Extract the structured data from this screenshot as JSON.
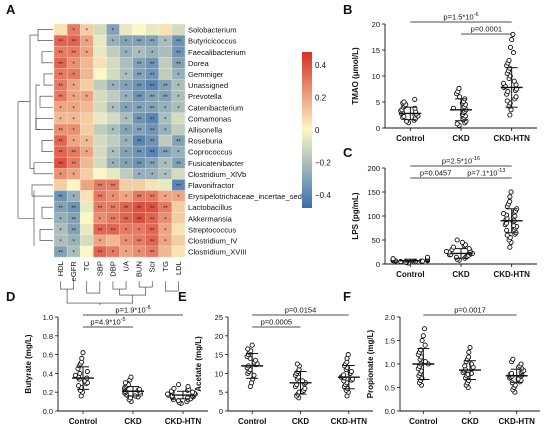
{
  "heatmap": {
    "panel_label": "A",
    "rows": [
      "Solobacterium",
      "Butyricicoccus",
      "Faecalibacterium",
      "Dorea",
      "Gemmiger",
      "Unassigned",
      "Prevotella",
      "Catenibacterium",
      "Comamonas",
      "Allisonella",
      "Roseburia",
      "Coprococcus",
      "Fusicatenibacter",
      "Clostridium_XlVb",
      "Flavonifractor",
      "Erysipelotrichaceae_incertae_sedis",
      "Lactobacillus",
      "Akkermansia",
      "Streptococcus",
      "Clostridium_IV",
      "Clostridium_XVIII"
    ],
    "columns": [
      "HDL",
      "eGFR",
      "TC",
      "SBP",
      "DBP",
      "UA",
      "BUN",
      "Scr",
      "TG",
      "LDL"
    ],
    "values": [
      [
        0.05,
        0.3,
        0.1,
        -0.1,
        -0.3,
        -0.05,
        0.0,
        -0.05,
        0.05,
        -0.1
      ],
      [
        0.35,
        0.35,
        0.2,
        -0.05,
        -0.25,
        -0.3,
        -0.3,
        -0.3,
        -0.2,
        -0.35
      ],
      [
        0.3,
        0.3,
        0.2,
        -0.05,
        -0.15,
        -0.25,
        -0.2,
        -0.25,
        -0.2,
        -0.35
      ],
      [
        0.35,
        0.25,
        0.15,
        0.05,
        -0.1,
        -0.2,
        -0.3,
        -0.35,
        -0.15,
        -0.3
      ],
      [
        0.3,
        0.3,
        0.15,
        0.0,
        -0.1,
        -0.2,
        -0.3,
        -0.35,
        -0.15,
        -0.25
      ],
      [
        0.3,
        0.2,
        0.1,
        -0.15,
        -0.25,
        -0.3,
        -0.35,
        -0.4,
        -0.3,
        -0.2
      ],
      [
        0.3,
        0.2,
        0.2,
        -0.1,
        -0.15,
        -0.25,
        -0.35,
        -0.3,
        -0.3,
        -0.2
      ],
      [
        0.2,
        0.2,
        0.15,
        -0.1,
        -0.2,
        -0.3,
        -0.3,
        -0.3,
        -0.25,
        -0.2
      ],
      [
        0.15,
        0.15,
        0.1,
        -0.05,
        -0.1,
        -0.2,
        -0.35,
        -0.4,
        -0.2,
        -0.1
      ],
      [
        0.25,
        0.25,
        0.1,
        -0.15,
        -0.2,
        -0.3,
        -0.3,
        -0.35,
        -0.25,
        -0.15
      ],
      [
        0.35,
        0.2,
        0.15,
        -0.1,
        -0.15,
        -0.25,
        -0.4,
        -0.35,
        -0.15,
        -0.3
      ],
      [
        0.35,
        0.3,
        0.2,
        -0.1,
        -0.2,
        -0.3,
        -0.35,
        -0.4,
        -0.3,
        -0.25
      ],
      [
        0.4,
        0.3,
        0.15,
        -0.1,
        -0.25,
        -0.3,
        -0.35,
        -0.3,
        -0.2,
        -0.3
      ],
      [
        0.25,
        0.2,
        0.1,
        0.0,
        -0.05,
        -0.15,
        -0.25,
        -0.25,
        -0.2,
        -0.1
      ],
      [
        0.1,
        0.0,
        0.2,
        0.3,
        0.3,
        0.1,
        0.1,
        0.05,
        -0.05,
        -0.4
      ],
      [
        -0.35,
        -0.25,
        0.05,
        0.3,
        0.25,
        0.2,
        0.3,
        0.3,
        0.2,
        0.2
      ],
      [
        -0.3,
        -0.35,
        -0.05,
        0.3,
        0.3,
        0.35,
        0.4,
        0.4,
        0.3,
        0.1
      ],
      [
        -0.25,
        -0.3,
        0.0,
        0.25,
        0.3,
        0.35,
        0.4,
        0.35,
        0.25,
        0.1
      ],
      [
        -0.2,
        -0.3,
        -0.05,
        0.35,
        0.35,
        0.3,
        0.3,
        0.35,
        0.2,
        0.05
      ],
      [
        -0.2,
        -0.25,
        -0.1,
        0.2,
        0.15,
        0.25,
        0.3,
        0.35,
        0.2,
        0.1
      ],
      [
        -0.3,
        -0.2,
        0.0,
        0.35,
        0.3,
        0.2,
        0.25,
        0.3,
        0.15,
        0.05
      ]
    ],
    "significance": [
      [
        0,
        1,
        1,
        0,
        1,
        0,
        0,
        0,
        0,
        0
      ],
      [
        2,
        2,
        1,
        0,
        1,
        1,
        2,
        2,
        1,
        2
      ],
      [
        2,
        2,
        1,
        0,
        0,
        1,
        1,
        1,
        0,
        2
      ],
      [
        2,
        1,
        0,
        0,
        0,
        0,
        2,
        2,
        0,
        2
      ],
      [
        2,
        1,
        0,
        0,
        0,
        1,
        2,
        2,
        0,
        1
      ],
      [
        2,
        1,
        0,
        0,
        1,
        1,
        2,
        2,
        2,
        1
      ],
      [
        2,
        1,
        1,
        0,
        0,
        1,
        2,
        2,
        2,
        1
      ],
      [
        1,
        1,
        0,
        0,
        1,
        1,
        2,
        2,
        1,
        1
      ],
      [
        1,
        1,
        0,
        0,
        0,
        1,
        2,
        2,
        1,
        0
      ],
      [
        2,
        1,
        0,
        0,
        1,
        1,
        2,
        2,
        1,
        0
      ],
      [
        2,
        1,
        1,
        0,
        0,
        1,
        2,
        2,
        0,
        2
      ],
      [
        2,
        2,
        1,
        0,
        1,
        1,
        2,
        2,
        2,
        1
      ],
      [
        2,
        2,
        0,
        0,
        1,
        1,
        2,
        2,
        1,
        2
      ],
      [
        1,
        1,
        0,
        0,
        0,
        0,
        1,
        1,
        1,
        0
      ],
      [
        0,
        0,
        0,
        2,
        2,
        0,
        0,
        0,
        0,
        2
      ],
      [
        2,
        1,
        0,
        2,
        1,
        1,
        2,
        2,
        1,
        1
      ],
      [
        2,
        2,
        0,
        2,
        2,
        2,
        2,
        2,
        2,
        0
      ],
      [
        1,
        2,
        0,
        1,
        2,
        2,
        2,
        2,
        1,
        0
      ],
      [
        1,
        2,
        0,
        2,
        2,
        1,
        1,
        2,
        1,
        0
      ],
      [
        1,
        1,
        0,
        1,
        0,
        1,
        2,
        2,
        1,
        0
      ],
      [
        2,
        1,
        0,
        2,
        1,
        1,
        1,
        2,
        0,
        0
      ]
    ],
    "colorbar": {
      "ticks": [
        0.4,
        0.2,
        0,
        -0.2,
        -0.4
      ],
      "tick_labels": [
        "0.4",
        "0.2",
        "0",
        "−0.2",
        "−0.4"
      ],
      "range": [
        -0.48,
        0.48
      ]
    },
    "colors": {
      "positive": "#d73027",
      "mid": "#fcf7c4",
      "negative": "#3b6fae"
    }
  },
  "chart_data": [
    {
      "panel": "B",
      "type": "scatter",
      "categories": [
        "Control",
        "CKD",
        "CKD-HTN"
      ],
      "ylabel": "TMAO (μmol/L)",
      "ylim": [
        0,
        20
      ],
      "yticks": [
        0,
        5,
        10,
        15,
        20
      ],
      "groups": [
        {
          "points": [
            1.0,
            1.3,
            1.5,
            1.8,
            2.0,
            2.2,
            2.3,
            2.5,
            2.7,
            2.8,
            3.0,
            3.1,
            3.3,
            3.5,
            3.8,
            4.0,
            4.2,
            4.5,
            4.8,
            5.0,
            5.5
          ],
          "mean": 2.8,
          "sd": 1.2
        },
        {
          "points": [
            0.5,
            0.8,
            1.0,
            1.3,
            1.6,
            2.0,
            2.3,
            2.6,
            3.0,
            3.2,
            3.5,
            3.8,
            4.1,
            4.5,
            4.8,
            5.1,
            5.6,
            6.0,
            6.6,
            7.0,
            7.6
          ],
          "mean": 3.5,
          "sd": 2.1
        },
        {
          "points": [
            2.5,
            3.5,
            4.2,
            4.8,
            5.2,
            5.6,
            6.0,
            6.5,
            7.0,
            7.2,
            7.5,
            7.8,
            8.0,
            8.3,
            8.6,
            9.0,
            9.5,
            10.0,
            10.5,
            11.0,
            11.5,
            12.0,
            12.5,
            13.0,
            14.5,
            15.5,
            17.0,
            18.0
          ],
          "mean": 7.8,
          "sd": 3.8
        }
      ],
      "annotations": [
        {
          "text": "p=1.5*10",
          "sup": "-6",
          "from": 0,
          "to": 2,
          "level": 0
        },
        {
          "text": "p=0.0001",
          "sup": "",
          "from": 1,
          "to": 2,
          "level": 1
        }
      ]
    },
    {
      "panel": "C",
      "type": "scatter",
      "categories": [
        "Control",
        "CKD",
        "CKD-HTN"
      ],
      "ylabel": "LPS (pg/mL)",
      "ylim": [
        0,
        200
      ],
      "yticks": [
        0,
        50,
        100,
        150,
        200
      ],
      "groups": [
        {
          "points": [
            2,
            3,
            4,
            4,
            5,
            5,
            6,
            6,
            6,
            7,
            7,
            7,
            8,
            8,
            8,
            9,
            9,
            10,
            10,
            11,
            12,
            14
          ],
          "mean": 7,
          "sd": 3
        },
        {
          "points": [
            8,
            10,
            12,
            14,
            15,
            16,
            18,
            19,
            20,
            21,
            22,
            23,
            24,
            25,
            26,
            28,
            30,
            32,
            35,
            38,
            40,
            45,
            50
          ],
          "mean": 22,
          "sd": 10
        },
        {
          "points": [
            35,
            45,
            50,
            55,
            60,
            62,
            65,
            70,
            72,
            75,
            78,
            80,
            82,
            85,
            88,
            90,
            92,
            95,
            98,
            100,
            102,
            105,
            108,
            110,
            115,
            120,
            125,
            130,
            140,
            150
          ],
          "mean": 90,
          "sd": 25
        }
      ],
      "annotations": [
        {
          "text": "p=2.5*10",
          "sup": "-16",
          "from": 0,
          "to": 2,
          "level": 0
        },
        {
          "text": "p=0.0457",
          "sup": "",
          "from": 0,
          "to": 1,
          "level": 1
        },
        {
          "text": "p=7.1*10",
          "sup": "-13",
          "from": 1,
          "to": 2,
          "level": 1
        }
      ]
    },
    {
      "panel": "D",
      "type": "scatter",
      "categories": [
        "Control",
        "CKD",
        "CKD-HTN"
      ],
      "ylabel": "Butyrate (mg/L)",
      "ylim": [
        0,
        1.0
      ],
      "yticks": [
        0.0,
        0.2,
        0.4,
        0.6,
        0.8,
        1.0
      ],
      "groups": [
        {
          "points": [
            0.16,
            0.2,
            0.22,
            0.25,
            0.27,
            0.29,
            0.3,
            0.32,
            0.34,
            0.35,
            0.36,
            0.38,
            0.4,
            0.42,
            0.45,
            0.48,
            0.5,
            0.52,
            0.56,
            0.62
          ],
          "mean": 0.35,
          "sd": 0.12
        },
        {
          "points": [
            0.1,
            0.12,
            0.14,
            0.15,
            0.16,
            0.17,
            0.18,
            0.19,
            0.2,
            0.2,
            0.21,
            0.22,
            0.23,
            0.24,
            0.25,
            0.26,
            0.27,
            0.28,
            0.3,
            0.33,
            0.36
          ],
          "mean": 0.21,
          "sd": 0.05
        },
        {
          "points": [
            0.08,
            0.09,
            0.1,
            0.11,
            0.12,
            0.12,
            0.13,
            0.14,
            0.14,
            0.15,
            0.15,
            0.16,
            0.16,
            0.17,
            0.17,
            0.18,
            0.18,
            0.19,
            0.2,
            0.2,
            0.21,
            0.22,
            0.23,
            0.24,
            0.26,
            0.28
          ],
          "mean": 0.17,
          "sd": 0.04
        }
      ],
      "annotations": [
        {
          "text": "p=1.9*10",
          "sup": "-8",
          "from": 0,
          "to": 2,
          "level": 0
        },
        {
          "text": "p=4.9*10",
          "sup": "-5",
          "from": 0,
          "to": 1,
          "level": 1
        }
      ]
    },
    {
      "panel": "E",
      "type": "scatter",
      "categories": [
        "Control",
        "CKD",
        "CKD-HTN"
      ],
      "ylabel": "Acetate (mg/L)",
      "ylim": [
        0,
        25
      ],
      "yticks": [
        0,
        5,
        10,
        15,
        20,
        25
      ],
      "groups": [
        {
          "points": [
            6.5,
            7.5,
            8.5,
            9.5,
            10.0,
            10.5,
            11.0,
            11.5,
            12.0,
            12.3,
            12.6,
            13.0,
            13.5,
            14.0,
            14.5,
            15.0,
            15.5,
            16.0,
            16.5,
            17.5
          ],
          "mean": 12,
          "sd": 3.3
        },
        {
          "points": [
            3.5,
            4.0,
            4.5,
            5.0,
            5.2,
            5.5,
            6.0,
            6.5,
            7.0,
            7.2,
            7.5,
            8.0,
            8.5,
            9.0,
            9.5,
            10.0,
            10.5,
            11.0,
            12.0,
            12.5
          ],
          "mean": 7.5,
          "sd": 3.0
        },
        {
          "points": [
            4.0,
            5.0,
            5.5,
            6.0,
            6.5,
            7.0,
            7.5,
            8.0,
            8.2,
            8.5,
            8.8,
            9.0,
            9.3,
            9.6,
            10.0,
            10.5,
            11.0,
            11.5,
            12.0,
            12.5,
            13.0,
            14.0,
            15.0
          ],
          "mean": 9,
          "sd": 3.1
        }
      ],
      "annotations": [
        {
          "text": "p=0.0154",
          "sup": "",
          "from": 0,
          "to": 2,
          "level": 0
        },
        {
          "text": "p=0.0005",
          "sup": "",
          "from": 0,
          "to": 1,
          "level": 1
        }
      ]
    },
    {
      "panel": "F",
      "type": "scatter",
      "categories": [
        "Control",
        "CKD",
        "CKD-HTN"
      ],
      "ylabel": "Propionate (mg/L)",
      "ylim": [
        0,
        2.0
      ],
      "yticks": [
        0.0,
        0.5,
        1.0,
        1.5,
        2.0
      ],
      "groups": [
        {
          "points": [
            0.55,
            0.6,
            0.65,
            0.7,
            0.75,
            0.8,
            0.85,
            0.9,
            0.95,
            1.0,
            1.0,
            1.05,
            1.1,
            1.15,
            1.2,
            1.25,
            1.3,
            1.4,
            1.5,
            1.6,
            1.75
          ],
          "mean": 1.0,
          "sd": 0.33
        },
        {
          "points": [
            0.5,
            0.55,
            0.6,
            0.65,
            0.7,
            0.75,
            0.78,
            0.8,
            0.82,
            0.85,
            0.88,
            0.9,
            0.93,
            0.96,
            1.0,
            1.05,
            1.1,
            1.15,
            1.25,
            1.35
          ],
          "mean": 0.87,
          "sd": 0.2
        },
        {
          "points": [
            0.4,
            0.45,
            0.5,
            0.55,
            0.6,
            0.62,
            0.65,
            0.68,
            0.7,
            0.72,
            0.74,
            0.76,
            0.78,
            0.8,
            0.82,
            0.84,
            0.86,
            0.9,
            0.93,
            0.96,
            1.0,
            1.05,
            1.1
          ],
          "mean": 0.75,
          "sd": 0.14
        }
      ],
      "annotations": [
        {
          "text": "p=0.0017",
          "sup": "",
          "from": 0,
          "to": 2,
          "level": 0
        }
      ]
    }
  ]
}
